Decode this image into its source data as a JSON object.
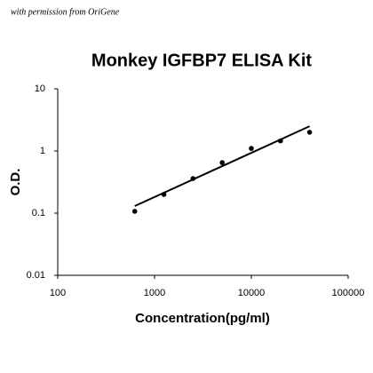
{
  "note": "with permission from OriGene",
  "chart_data": {
    "type": "scatter",
    "title": "Monkey IGFBP7 ELISA Kit",
    "x_label": "Concentration(pg/ml)",
    "y_label": "O.D.",
    "x": [
      625,
      1250,
      2500,
      5000,
      10000,
      20000,
      40000
    ],
    "values": [
      0.107,
      0.2,
      0.36,
      0.65,
      1.1,
      1.45,
      2.0
    ],
    "color": "#000000",
    "trendline": {
      "x": [
        625,
        40000
      ],
      "values": [
        0.13,
        2.5
      ]
    },
    "xlim": [
      100,
      100000
    ],
    "xticks": [
      100,
      1000,
      10000,
      100000
    ],
    "ylim": [
      0.01,
      10
    ],
    "yticks": [
      0.01,
      0.1,
      1,
      10
    ],
    "log_x": true,
    "log_y": true,
    "grid": false
  }
}
